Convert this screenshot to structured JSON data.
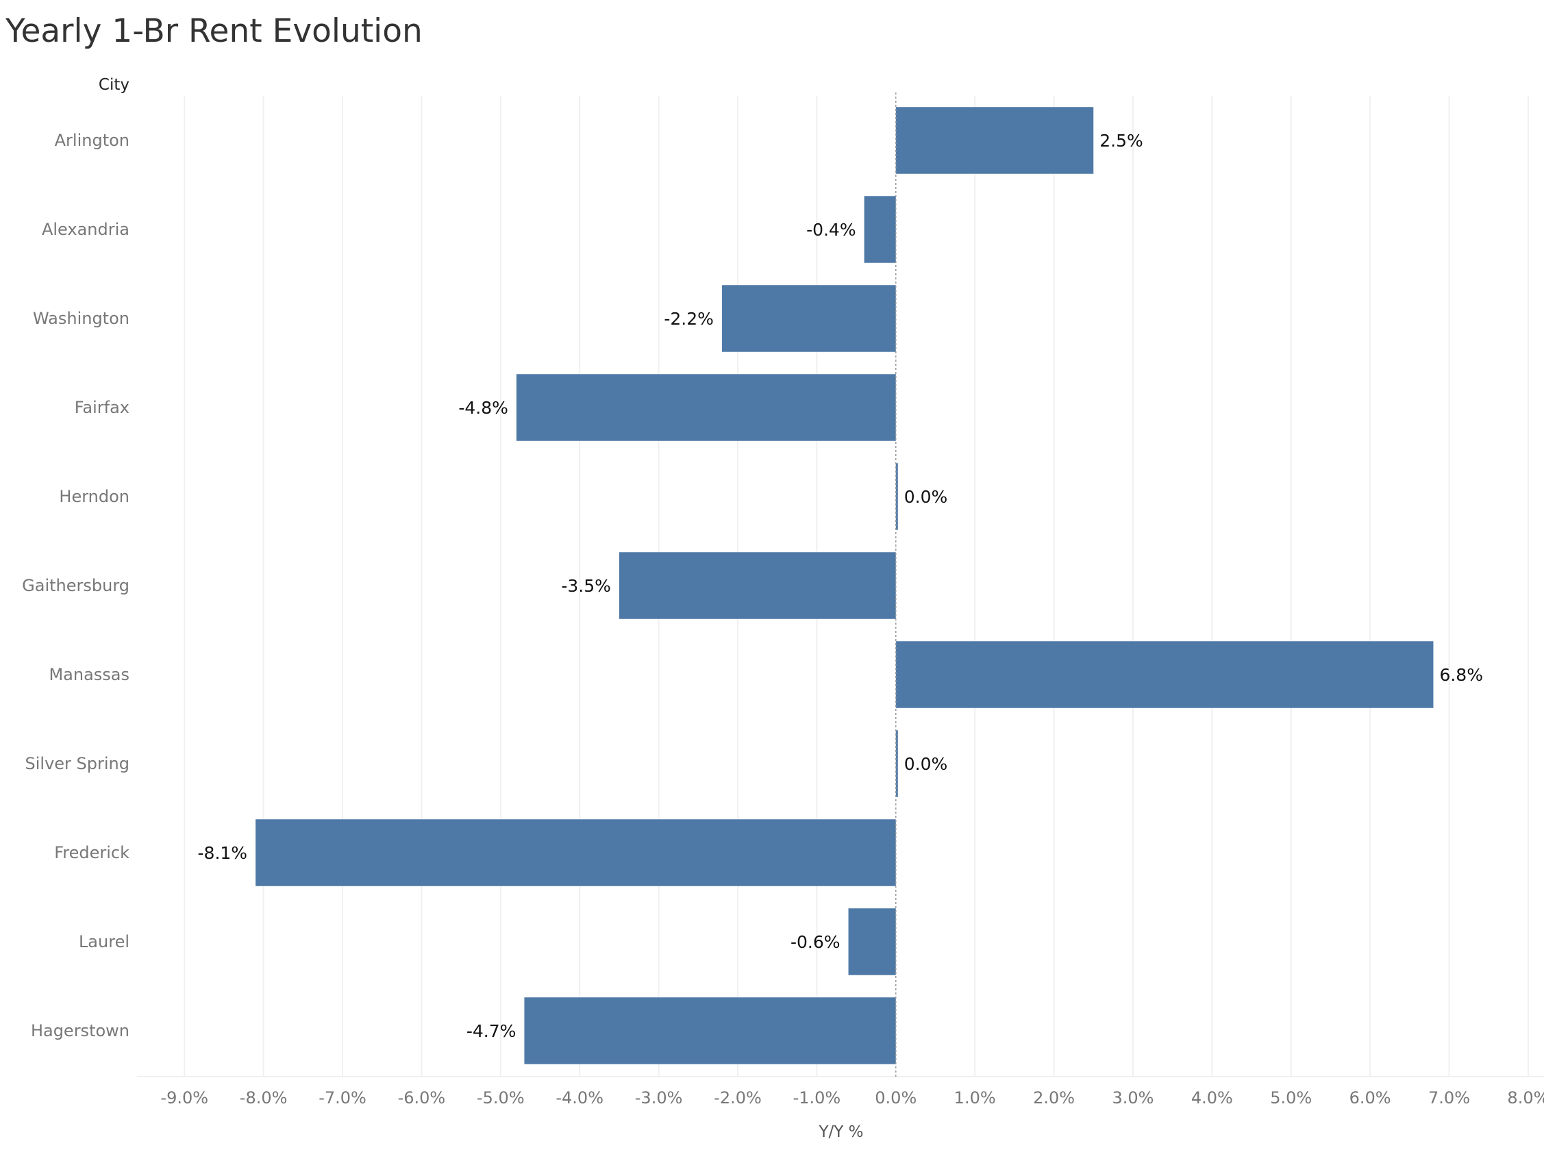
{
  "chart_data": {
    "type": "bar",
    "orientation": "horizontal",
    "title": "Yearly 1-Br Rent Evolution",
    "row_header": "City",
    "xlabel": "Y/Y %",
    "categories": [
      "Arlington",
      "Alexandria",
      "Washington",
      "Fairfax",
      "Herndon",
      "Gaithersburg",
      "Manassas",
      "Silver Spring",
      "Frederick",
      "Laurel",
      "Hagerstown"
    ],
    "values": [
      2.5,
      -0.4,
      -2.2,
      -4.8,
      0.0,
      -3.5,
      6.8,
      0.0,
      -8.1,
      -0.6,
      -4.7
    ],
    "value_labels": [
      "2.5%",
      "-0.4%",
      "-2.2%",
      "-4.8%",
      "0.0%",
      "-3.5%",
      "6.8%",
      "0.0%",
      "-8.1%",
      "-0.6%",
      "-4.7%"
    ],
    "x_ticks": [
      -9,
      -8,
      -7,
      -6,
      -5,
      -4,
      -3,
      -2,
      -1,
      0,
      1,
      2,
      3,
      4,
      5,
      6,
      7,
      8
    ],
    "x_tick_labels": [
      "-9.0%",
      "-8.0%",
      "-7.0%",
      "-6.0%",
      "-5.0%",
      "-4.0%",
      "-3.0%",
      "-2.0%",
      "-1.0%",
      "0.0%",
      "1.0%",
      "2.0%",
      "3.0%",
      "4.0%",
      "5.0%",
      "6.0%",
      "7.0%",
      "8.0%"
    ],
    "xlim": [
      -9.6,
      8.2
    ],
    "grid": true,
    "legend": "none",
    "bar_color": "#4e79a7"
  }
}
